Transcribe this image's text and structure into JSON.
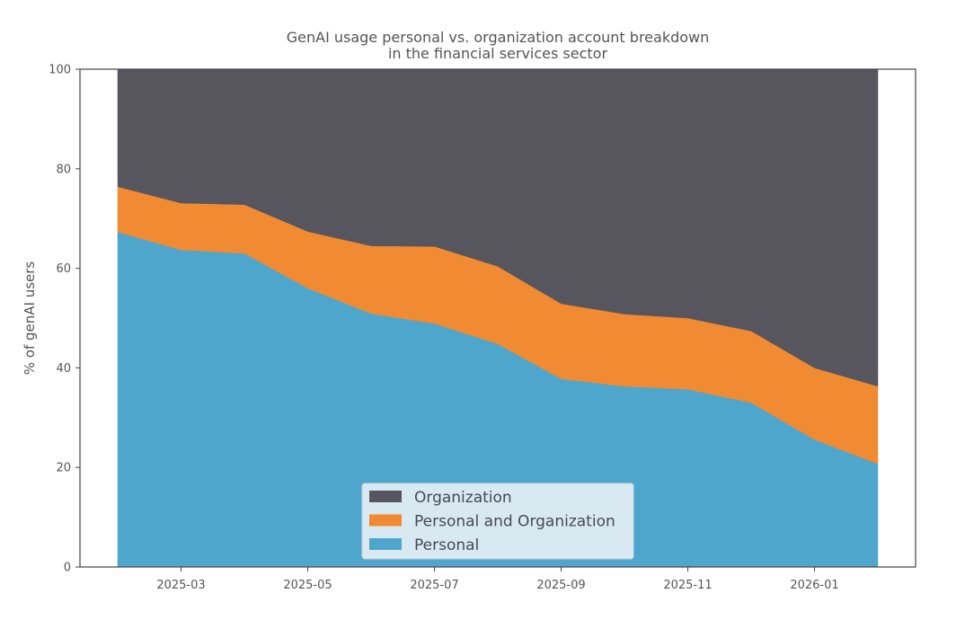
{
  "chart_data": {
    "type": "area",
    "stacked": true,
    "title_lines": [
      "GenAI usage personal vs. organization account breakdown",
      "in the financial services sector"
    ],
    "xlabel": "",
    "ylabel": "% of genAI users",
    "ylim": [
      0,
      100
    ],
    "yticks": [
      0,
      20,
      40,
      60,
      80,
      100
    ],
    "ytick_labels": [
      "0",
      "20",
      "40",
      "60",
      "80",
      "100"
    ],
    "x": [
      "2025-02",
      "2025-03",
      "2025-04",
      "2025-05",
      "2025-06",
      "2025-07",
      "2025-08",
      "2025-09",
      "2025-10",
      "2025-11",
      "2025-12",
      "2026-01",
      "2026-02"
    ],
    "xtick_labels": [
      "2025-03",
      "2025-05",
      "2025-07",
      "2025-09",
      "2025-11",
      "2026-01"
    ],
    "grid": false,
    "legend_position": "lower-center",
    "series": [
      {
        "name": "Personal",
        "color": "#4ea6cc",
        "values": [
          67.3,
          63.7,
          63.0,
          56.0,
          50.9,
          48.9,
          44.8,
          37.8,
          36.3,
          35.7,
          33.0,
          25.6,
          20.7
        ]
      },
      {
        "name": "Personal and Organization",
        "color": "#f08a33",
        "values": [
          9.1,
          9.4,
          9.8,
          11.4,
          13.6,
          15.5,
          15.6,
          15.1,
          14.5,
          14.3,
          14.4,
          14.4,
          15.6
        ]
      },
      {
        "name": "Organization",
        "color": "#57555e",
        "values": [
          23.6,
          26.9,
          27.2,
          32.6,
          35.5,
          35.6,
          39.6,
          47.1,
          49.2,
          50.0,
          52.6,
          60.0,
          63.7
        ]
      }
    ],
    "legend_order": [
      "Organization",
      "Personal and Organization",
      "Personal"
    ]
  }
}
